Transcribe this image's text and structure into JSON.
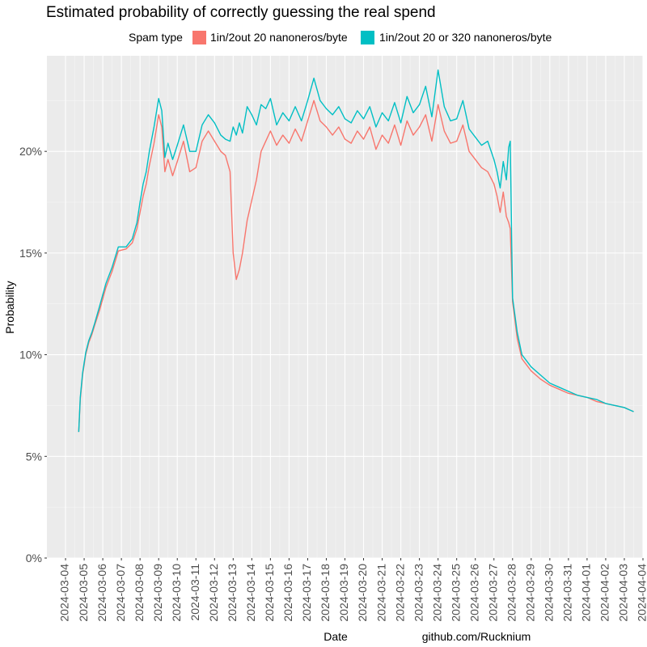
{
  "chart_data": {
    "type": "line",
    "title": "Estimated probability of correctly guessing the real spend",
    "xlabel": "Date",
    "ylabel": "Probability",
    "caption": "github.com/Rucknium",
    "legend": {
      "title": "Spam type",
      "position": "top"
    },
    "x_tick_labels": [
      "2024-03-04",
      "2024-03-05",
      "2024-03-06",
      "2024-03-07",
      "2024-03-08",
      "2024-03-09",
      "2024-03-10",
      "2024-03-11",
      "2024-03-12",
      "2024-03-13",
      "2024-03-14",
      "2024-03-15",
      "2024-03-16",
      "2024-03-17",
      "2024-03-18",
      "2024-03-19",
      "2024-03-20",
      "2024-03-21",
      "2024-03-22",
      "2024-03-23",
      "2024-03-24",
      "2024-03-25",
      "2024-03-26",
      "2024-03-27",
      "2024-03-28",
      "2024-03-29",
      "2024-03-30",
      "2024-03-31",
      "2024-04-01",
      "2024-04-02",
      "2024-04-03",
      "2024-04-04"
    ],
    "y_ticks": [
      0,
      0.05,
      0.1,
      0.15,
      0.2
    ],
    "y_tick_labels": [
      "0%",
      "5%",
      "10%",
      "15%",
      "20%"
    ],
    "xlim": [
      "2024-03-03",
      "2024-04-04"
    ],
    "ylim": [
      0,
      0.247
    ],
    "grid": true,
    "colors": {
      "panel": "#ebebeb",
      "grid_major": "#ffffff",
      "grid_minor": "#f5f5f5"
    },
    "series": [
      {
        "name": "1in/2out 20 nanoneros/byte",
        "color": "#F8766D",
        "x": [
          "2024-03-04 17:00",
          "2024-03-04 19:00",
          "2024-03-04 22:00",
          "2024-03-05 02:00",
          "2024-03-05 06:00",
          "2024-03-05 10:00",
          "2024-03-05 14:00",
          "2024-03-05 20:00",
          "2024-03-06 04:00",
          "2024-03-06 12:00",
          "2024-03-06 20:00",
          "2024-03-07 06:00",
          "2024-03-07 14:00",
          "2024-03-07 20:00",
          "2024-03-08 00:00",
          "2024-03-08 04:00",
          "2024-03-08 08:00",
          "2024-03-08 12:00",
          "2024-03-08 18:00",
          "2024-03-09 00:00",
          "2024-03-09 04:00",
          "2024-03-09 08:00",
          "2024-03-09 12:00",
          "2024-03-09 18:00",
          "2024-03-10 00:00",
          "2024-03-10 08:00",
          "2024-03-10 16:00",
          "2024-03-11 00:00",
          "2024-03-11 08:00",
          "2024-03-11 16:00",
          "2024-03-12 00:00",
          "2024-03-12 08:00",
          "2024-03-12 14:00",
          "2024-03-12 20:00",
          "2024-03-13 00:00",
          "2024-03-13 04:00",
          "2024-03-13 08:00",
          "2024-03-13 12:00",
          "2024-03-13 18:00",
          "2024-03-14 00:00",
          "2024-03-14 06:00",
          "2024-03-14 12:00",
          "2024-03-14 18:00",
          "2024-03-15 00:00",
          "2024-03-15 08:00",
          "2024-03-15 16:00",
          "2024-03-16 00:00",
          "2024-03-16 08:00",
          "2024-03-16 16:00",
          "2024-03-17 00:00",
          "2024-03-17 08:00",
          "2024-03-17 16:00",
          "2024-03-18 00:00",
          "2024-03-18 08:00",
          "2024-03-18 16:00",
          "2024-03-19 00:00",
          "2024-03-19 08:00",
          "2024-03-19 16:00",
          "2024-03-20 00:00",
          "2024-03-20 08:00",
          "2024-03-20 16:00",
          "2024-03-21 00:00",
          "2024-03-21 08:00",
          "2024-03-21 16:00",
          "2024-03-22 00:00",
          "2024-03-22 08:00",
          "2024-03-22 16:00",
          "2024-03-23 00:00",
          "2024-03-23 08:00",
          "2024-03-23 16:00",
          "2024-03-24 00:00",
          "2024-03-24 08:00",
          "2024-03-24 16:00",
          "2024-03-25 00:00",
          "2024-03-25 08:00",
          "2024-03-25 16:00",
          "2024-03-26 00:00",
          "2024-03-26 08:00",
          "2024-03-26 16:00",
          "2024-03-27 00:00",
          "2024-03-27 04:00",
          "2024-03-27 08:00",
          "2024-03-27 12:00",
          "2024-03-27 16:00",
          "2024-03-27 19:00",
          "2024-03-27 21:00",
          "2024-03-28 00:00",
          "2024-03-28 06:00",
          "2024-03-28 12:00",
          "2024-03-29 00:00",
          "2024-03-29 12:00",
          "2024-03-30 00:00",
          "2024-03-30 12:00",
          "2024-03-31 00:00",
          "2024-03-31 12:00",
          "2024-04-01 00:00",
          "2024-04-01 12:00",
          "2024-04-02 00:00",
          "2024-04-02 12:00",
          "2024-04-03 00:00",
          "2024-04-03 06:00",
          "2024-04-03 12:00"
        ],
        "y": [
          0.062,
          0.078,
          0.09,
          0.1,
          0.106,
          0.11,
          0.115,
          0.122,
          0.133,
          0.141,
          0.151,
          0.152,
          0.155,
          0.162,
          0.17,
          0.178,
          0.184,
          0.193,
          0.204,
          0.218,
          0.212,
          0.19,
          0.196,
          0.188,
          0.195,
          0.205,
          0.19,
          0.192,
          0.205,
          0.21,
          0.205,
          0.2,
          0.198,
          0.19,
          0.15,
          0.137,
          0.142,
          0.15,
          0.166,
          0.176,
          0.186,
          0.2,
          0.205,
          0.21,
          0.203,
          0.208,
          0.204,
          0.211,
          0.205,
          0.215,
          0.225,
          0.215,
          0.212,
          0.208,
          0.212,
          0.206,
          0.204,
          0.21,
          0.206,
          0.212,
          0.201,
          0.208,
          0.204,
          0.213,
          0.203,
          0.215,
          0.208,
          0.212,
          0.218,
          0.205,
          0.223,
          0.21,
          0.204,
          0.205,
          0.213,
          0.2,
          0.196,
          0.192,
          0.19,
          0.184,
          0.178,
          0.17,
          0.18,
          0.168,
          0.165,
          0.162,
          0.126,
          0.108,
          0.098,
          0.092,
          0.088,
          0.085,
          0.083,
          0.081,
          0.08,
          0.079,
          0.077,
          0.076,
          0.075,
          0.074,
          0.073,
          0.072
        ]
      },
      {
        "name": "1in/2out 20 or 320 nanoneros/byte",
        "color": "#00BFC4",
        "x": [
          "2024-03-04 17:00",
          "2024-03-04 19:00",
          "2024-03-04 22:00",
          "2024-03-05 02:00",
          "2024-03-05 06:00",
          "2024-03-05 10:00",
          "2024-03-05 14:00",
          "2024-03-05 20:00",
          "2024-03-06 04:00",
          "2024-03-06 12:00",
          "2024-03-06 20:00",
          "2024-03-07 06:00",
          "2024-03-07 14:00",
          "2024-03-07 20:00",
          "2024-03-08 00:00",
          "2024-03-08 04:00",
          "2024-03-08 08:00",
          "2024-03-08 12:00",
          "2024-03-08 18:00",
          "2024-03-09 00:00",
          "2024-03-09 04:00",
          "2024-03-09 08:00",
          "2024-03-09 12:00",
          "2024-03-09 18:00",
          "2024-03-10 00:00",
          "2024-03-10 08:00",
          "2024-03-10 16:00",
          "2024-03-11 00:00",
          "2024-03-11 08:00",
          "2024-03-11 16:00",
          "2024-03-12 00:00",
          "2024-03-12 08:00",
          "2024-03-12 14:00",
          "2024-03-12 20:00",
          "2024-03-13 00:00",
          "2024-03-13 04:00",
          "2024-03-13 08:00",
          "2024-03-13 12:00",
          "2024-03-13 18:00",
          "2024-03-14 00:00",
          "2024-03-14 06:00",
          "2024-03-14 12:00",
          "2024-03-14 18:00",
          "2024-03-15 00:00",
          "2024-03-15 08:00",
          "2024-03-15 16:00",
          "2024-03-16 00:00",
          "2024-03-16 08:00",
          "2024-03-16 16:00",
          "2024-03-17 00:00",
          "2024-03-17 08:00",
          "2024-03-17 16:00",
          "2024-03-18 00:00",
          "2024-03-18 08:00",
          "2024-03-18 16:00",
          "2024-03-19 00:00",
          "2024-03-19 08:00",
          "2024-03-19 16:00",
          "2024-03-20 00:00",
          "2024-03-20 08:00",
          "2024-03-20 16:00",
          "2024-03-21 00:00",
          "2024-03-21 08:00",
          "2024-03-21 16:00",
          "2024-03-22 00:00",
          "2024-03-22 08:00",
          "2024-03-22 16:00",
          "2024-03-23 00:00",
          "2024-03-23 08:00",
          "2024-03-23 16:00",
          "2024-03-24 00:00",
          "2024-03-24 08:00",
          "2024-03-24 16:00",
          "2024-03-25 00:00",
          "2024-03-25 08:00",
          "2024-03-25 16:00",
          "2024-03-26 00:00",
          "2024-03-26 08:00",
          "2024-03-26 16:00",
          "2024-03-27 00:00",
          "2024-03-27 04:00",
          "2024-03-27 08:00",
          "2024-03-27 12:00",
          "2024-03-27 16:00",
          "2024-03-27 19:00",
          "2024-03-27 21:00",
          "2024-03-28 00:00",
          "2024-03-28 06:00",
          "2024-03-28 12:00",
          "2024-03-29 00:00",
          "2024-03-29 12:00",
          "2024-03-30 00:00",
          "2024-03-30 12:00",
          "2024-03-31 00:00",
          "2024-03-31 12:00",
          "2024-04-01 00:00",
          "2024-04-01 12:00",
          "2024-04-02 00:00",
          "2024-04-02 12:00",
          "2024-04-03 00:00",
          "2024-04-03 06:00",
          "2024-04-03 12:00"
        ],
        "y": [
          0.062,
          0.079,
          0.091,
          0.101,
          0.107,
          0.111,
          0.116,
          0.124,
          0.135,
          0.143,
          0.153,
          0.153,
          0.157,
          0.165,
          0.175,
          0.184,
          0.19,
          0.2,
          0.212,
          0.226,
          0.22,
          0.197,
          0.204,
          0.196,
          0.203,
          0.213,
          0.2,
          0.2,
          0.213,
          0.218,
          0.214,
          0.208,
          0.206,
          0.205,
          0.212,
          0.208,
          0.214,
          0.209,
          0.222,
          0.218,
          0.213,
          0.223,
          0.221,
          0.226,
          0.213,
          0.219,
          0.215,
          0.222,
          0.215,
          0.225,
          0.236,
          0.225,
          0.221,
          0.218,
          0.222,
          0.216,
          0.214,
          0.22,
          0.216,
          0.222,
          0.212,
          0.219,
          0.215,
          0.224,
          0.214,
          0.227,
          0.219,
          0.223,
          0.232,
          0.217,
          0.24,
          0.222,
          0.215,
          0.216,
          0.225,
          0.211,
          0.207,
          0.203,
          0.205,
          0.196,
          0.19,
          0.182,
          0.195,
          0.186,
          0.202,
          0.205,
          0.128,
          0.111,
          0.1,
          0.094,
          0.09,
          0.086,
          0.084,
          0.082,
          0.08,
          0.079,
          0.078,
          0.076,
          0.075,
          0.074,
          0.073,
          0.072
        ]
      }
    ]
  }
}
